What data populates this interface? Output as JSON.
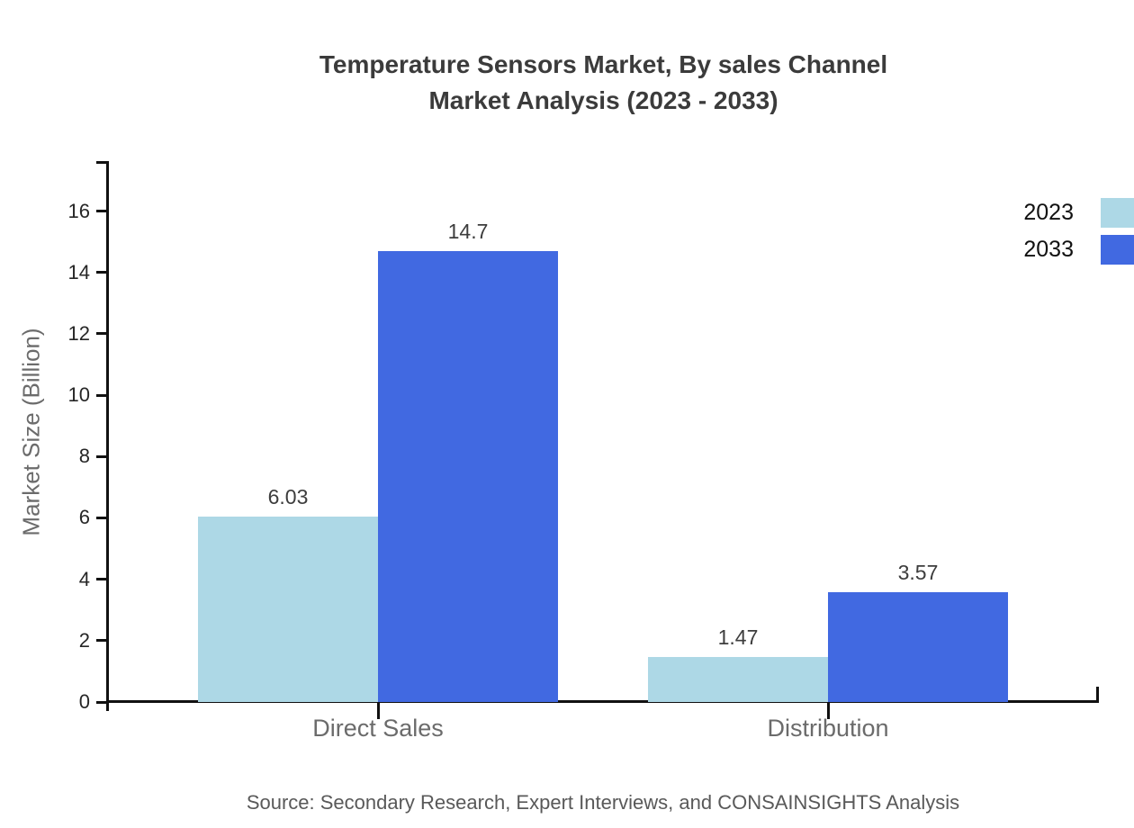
{
  "title": {
    "line1": "Temperature Sensors Market, By sales Channel",
    "line2": "Market Analysis (2023 - 2033)"
  },
  "source": "Source: Secondary Research, Expert Interviews, and CONSAINSIGHTS Analysis",
  "chart_data": {
    "type": "bar",
    "categories": [
      "Direct Sales",
      "Distribution"
    ],
    "series": [
      {
        "name": "2023",
        "color": "#add8e6",
        "values": [
          6.03,
          1.47
        ]
      },
      {
        "name": "2033",
        "color": "#4169e1",
        "values": [
          14.7,
          3.57
        ]
      }
    ],
    "title": "Temperature Sensors Market, By sales Channel Market Analysis (2023 - 2033)",
    "xlabel": "",
    "ylabel": "Market Size (Billion)",
    "ylim": [
      0,
      17.6
    ],
    "yticks": [
      0,
      2,
      4,
      6,
      8,
      10,
      12,
      14,
      16
    ],
    "grid": false,
    "legend_position": "top-right",
    "bar_value_labels": [
      "6.03",
      "14.7",
      "1.47",
      "3.57"
    ]
  },
  "colors": {
    "axis": "#111111",
    "title_text": "#3b3b3b",
    "tick_text": "#262626",
    "value_text": "#3d3d3d",
    "muted_text": "#6b6b6b",
    "source_text": "#595959",
    "series_2023": "#add8e6",
    "series_2033": "#4169e1"
  }
}
